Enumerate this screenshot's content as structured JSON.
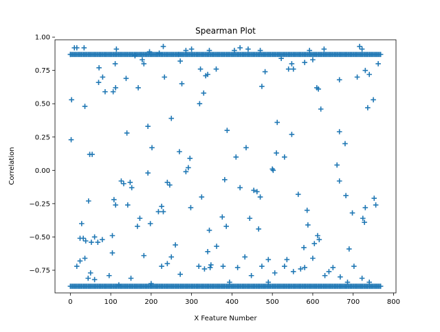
{
  "chart_data": {
    "type": "scatter",
    "title": "Spearman Plot",
    "xlabel": "X Feature Number",
    "ylabel": "Correlation",
    "xlim": [
      -38,
      806
    ],
    "ylim": [
      -0.92,
      0.98
    ],
    "x_ticks": [
      0,
      100,
      200,
      300,
      400,
      500,
      600,
      700,
      800
    ],
    "y_ticks": [
      -0.75,
      -0.5,
      -0.25,
      0.0,
      0.25,
      0.5,
      0.75,
      1.0
    ],
    "x_tick_labels": [
      "0",
      "100",
      "200",
      "300",
      "400",
      "500",
      "600",
      "700",
      "800"
    ],
    "y_tick_labels": [
      "−0.75",
      "−0.50",
      "−0.25",
      "0.00",
      "0.25",
      "0.50",
      "0.75",
      "1.00"
    ],
    "grid": false,
    "legend": "none",
    "marker": "+",
    "color": "#1f77b4",
    "series": [
      {
        "points": [
          [
            0,
            0.87
          ],
          [
            3,
            0.53
          ],
          [
            2,
            0.23
          ],
          [
            10,
            0.92
          ],
          [
            16,
            0.92
          ],
          [
            34,
            0.92
          ],
          [
            36,
            0.48
          ],
          [
            71,
            0.77
          ],
          [
            80,
            0.7
          ],
          [
            70,
            0.66
          ],
          [
            86,
            0.59
          ],
          [
            106,
            0.59
          ],
          [
            112,
            0.62
          ],
          [
            111,
            0.8
          ],
          [
            114,
            0.91
          ],
          [
            138,
            0.69
          ],
          [
            160,
            0.86
          ],
          [
            168,
            0.62
          ],
          [
            178,
            0.83
          ],
          [
            182,
            0.8
          ],
          [
            196,
            0.89
          ],
          [
            220,
            0.88
          ],
          [
            230,
            0.93
          ],
          [
            233,
            0.7
          ],
          [
            268,
            0.87
          ],
          [
            272,
            0.82
          ],
          [
            276,
            0.65
          ],
          [
            286,
            0.9
          ],
          [
            300,
            0.91
          ],
          [
            320,
            0.5
          ],
          [
            322,
            0.76
          ],
          [
            330,
            0.58
          ],
          [
            335,
            0.71
          ],
          [
            340,
            0.72
          ],
          [
            344,
            0.9
          ],
          [
            361,
            0.76
          ],
          [
            406,
            0.9
          ],
          [
            420,
            0.92
          ],
          [
            440,
            0.91
          ],
          [
            470,
            0.9
          ],
          [
            474,
            0.63
          ],
          [
            482,
            0.74
          ],
          [
            522,
            0.84
          ],
          [
            540,
            0.76
          ],
          [
            548,
            0.8
          ],
          [
            552,
            0.76
          ],
          [
            580,
            0.81
          ],
          [
            592,
            0.9
          ],
          [
            600,
            0.83
          ],
          [
            610,
            0.62
          ],
          [
            614,
            0.61
          ],
          [
            620,
            0.46
          ],
          [
            628,
            0.91
          ],
          [
            666,
            0.68
          ],
          [
            710,
            0.7
          ],
          [
            716,
            0.93
          ],
          [
            722,
            0.91
          ],
          [
            730,
            0.75
          ],
          [
            736,
            0.47
          ],
          [
            740,
            0.72
          ],
          [
            750,
            0.53
          ],
          [
            762,
            0.8
          ],
          [
            140,
            0.28
          ],
          [
            192,
            0.33
          ],
          [
            202,
            0.17
          ],
          [
            250,
            0.39
          ],
          [
            270,
            0.14
          ],
          [
            292,
            0.02
          ],
          [
            296,
            0.09
          ],
          [
            388,
            0.3
          ],
          [
            410,
            0.1
          ],
          [
            435,
            0.17
          ],
          [
            512,
            0.36
          ],
          [
            510,
            0.13
          ],
          [
            530,
            0.1
          ],
          [
            548,
            0.27
          ],
          [
            660,
            0.04
          ],
          [
            666,
            0.29
          ],
          [
            680,
            0.2
          ],
          [
            286,
            -0.01
          ],
          [
            192,
            -0.02
          ],
          [
            500,
            0.01
          ],
          [
            502,
            0.0
          ],
          [
            48,
            0.12
          ],
          [
            54,
            0.12
          ],
          [
            45,
            -0.23
          ],
          [
            28,
            -0.4
          ],
          [
            38,
            -0.53
          ],
          [
            32,
            -0.51
          ],
          [
            24,
            -0.51
          ],
          [
            52,
            -0.54
          ],
          [
            60,
            -0.5
          ],
          [
            68,
            -0.54
          ],
          [
            79,
            -0.52
          ],
          [
            104,
            -0.49
          ],
          [
            104,
            -0.62
          ],
          [
            108,
            -0.22
          ],
          [
            112,
            -0.26
          ],
          [
            126,
            -0.08
          ],
          [
            132,
            -0.1
          ],
          [
            142,
            -0.26
          ],
          [
            148,
            -0.09
          ],
          [
            152,
            -0.13
          ],
          [
            166,
            -0.42
          ],
          [
            172,
            -0.36
          ],
          [
            182,
            -0.64
          ],
          [
            198,
            -0.4
          ],
          [
            218,
            -0.31
          ],
          [
            226,
            -0.27
          ],
          [
            230,
            -0.31
          ],
          [
            240,
            -0.09
          ],
          [
            246,
            -0.11
          ],
          [
            250,
            -0.65
          ],
          [
            260,
            -0.56
          ],
          [
            298,
            -0.28
          ],
          [
            325,
            -0.2
          ],
          [
            344,
            -0.45
          ],
          [
            340,
            -0.61
          ],
          [
            346,
            -0.73
          ],
          [
            362,
            -0.57
          ],
          [
            376,
            -0.35
          ],
          [
            382,
            -0.07
          ],
          [
            386,
            -0.42
          ],
          [
            420,
            -0.13
          ],
          [
            444,
            -0.36
          ],
          [
            454,
            -0.15
          ],
          [
            462,
            -0.16
          ],
          [
            466,
            -0.44
          ],
          [
            470,
            -0.2
          ],
          [
            490,
            -0.67
          ],
          [
            564,
            -0.18
          ],
          [
            578,
            -0.58
          ],
          [
            586,
            -0.3
          ],
          [
            588,
            -0.41
          ],
          [
            604,
            -0.55
          ],
          [
            612,
            -0.49
          ],
          [
            616,
            -0.52
          ],
          [
            666,
            -0.08
          ],
          [
            682,
            -0.19
          ],
          [
            690,
            -0.59
          ],
          [
            698,
            -0.32
          ],
          [
            724,
            -0.36
          ],
          [
            728,
            -0.39
          ],
          [
            730,
            -0.28
          ],
          [
            752,
            -0.21
          ],
          [
            756,
            -0.26
          ],
          [
            16,
            -0.72
          ],
          [
            24,
            -0.68
          ],
          [
            36,
            -0.66
          ],
          [
            44,
            -0.81
          ],
          [
            50,
            -0.77
          ],
          [
            60,
            -0.82
          ],
          [
            96,
            -0.79
          ],
          [
            120,
            -0.86
          ],
          [
            150,
            -0.81
          ],
          [
            200,
            -0.85
          ],
          [
            226,
            -0.72
          ],
          [
            240,
            -0.7
          ],
          [
            272,
            -0.78
          ],
          [
            318,
            -0.72
          ],
          [
            332,
            -0.74
          ],
          [
            348,
            -0.71
          ],
          [
            378,
            -0.72
          ],
          [
            394,
            -0.84
          ],
          [
            414,
            -0.73
          ],
          [
            432,
            -0.65
          ],
          [
            448,
            -0.79
          ],
          [
            474,
            -0.72
          ],
          [
            490,
            -0.84
          ],
          [
            506,
            -0.77
          ],
          [
            530,
            -0.72
          ],
          [
            536,
            -0.67
          ],
          [
            552,
            -0.76
          ],
          [
            570,
            -0.74
          ],
          [
            580,
            -0.73
          ],
          [
            600,
            -0.66
          ],
          [
            630,
            -0.79
          ],
          [
            640,
            -0.76
          ],
          [
            650,
            -0.73
          ],
          [
            668,
            -0.8
          ],
          [
            686,
            -0.84
          ],
          [
            702,
            -0.72
          ],
          [
            722,
            -0.81
          ],
          [
            740,
            -0.84
          ]
        ],
        "upper_band_y": 0.87,
        "upper_band_x_range": [
          0,
          768
        ],
        "lower_band_y": -0.87,
        "lower_band_x_range": [
          0,
          768
        ],
        "band_step": 3
      }
    ]
  }
}
